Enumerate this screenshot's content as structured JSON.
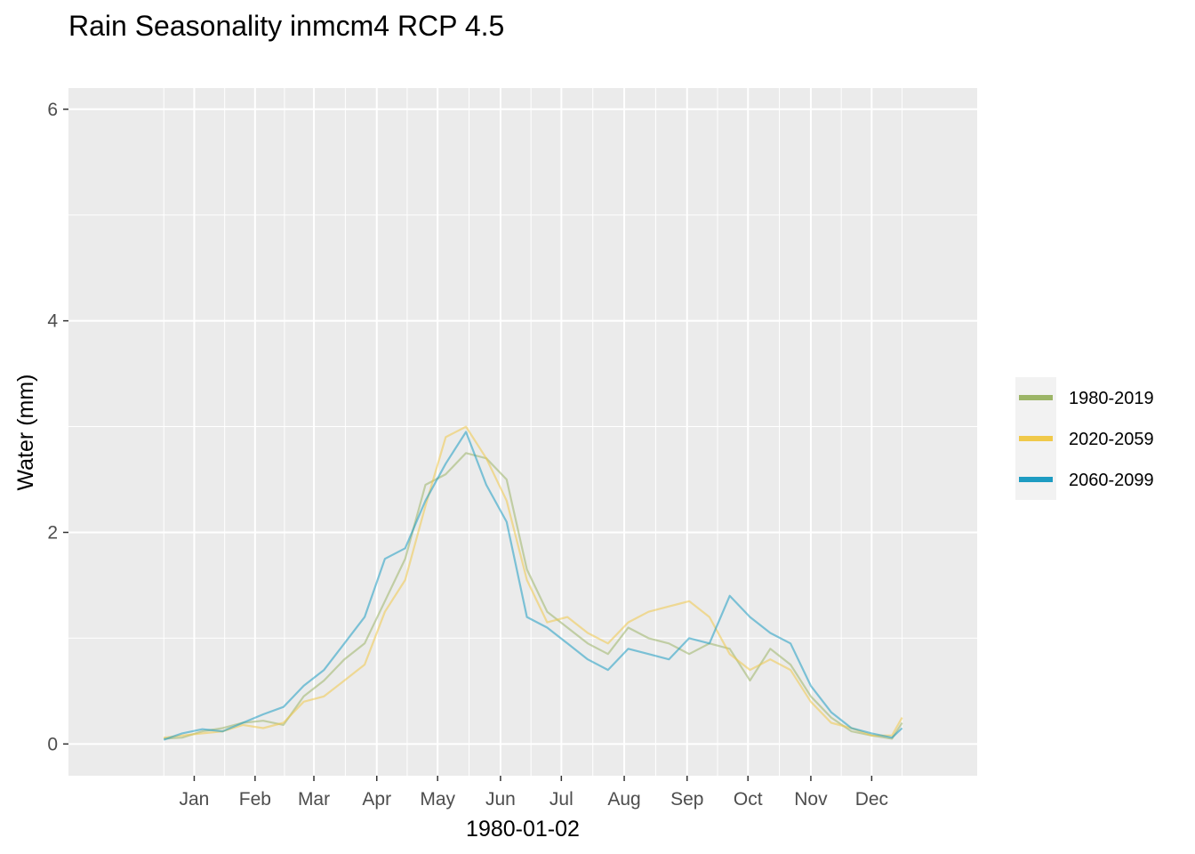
{
  "chart_data": {
    "type": "line",
    "title": "Rain Seasonality inmcm4 RCP 4.5",
    "xlabel": "1980-01-02",
    "ylabel": "Water (mm)",
    "ylim": [
      -0.3,
      6.2
    ],
    "yticks": [
      "0",
      "2",
      "4",
      "6"
    ],
    "x_unit": "day of year",
    "xlim": [
      -46,
      402
    ],
    "months": [
      "Jan",
      "Feb",
      "Mar",
      "Apr",
      "May",
      "Jun",
      "Jul",
      "Aug",
      "Sep",
      "Oct",
      "Nov",
      "Dec"
    ],
    "month_mid_days": [
      16,
      46,
      75,
      106,
      136,
      167,
      197,
      228,
      259,
      289,
      320,
      350
    ],
    "grid": true,
    "legend_position": "right",
    "x": [
      1,
      10,
      20,
      30,
      40,
      50,
      60,
      70,
      80,
      90,
      100,
      110,
      120,
      130,
      140,
      150,
      160,
      170,
      180,
      190,
      200,
      210,
      220,
      230,
      240,
      250,
      260,
      270,
      280,
      290,
      300,
      310,
      320,
      330,
      340,
      350,
      360,
      365
    ],
    "series": [
      {
        "name": "1980-2019",
        "color": "#9cb567",
        "values": [
          0.05,
          0.06,
          0.12,
          0.15,
          0.2,
          0.22,
          0.18,
          0.45,
          0.6,
          0.8,
          0.95,
          1.35,
          1.75,
          2.45,
          2.55,
          2.75,
          2.7,
          2.5,
          1.65,
          1.25,
          1.1,
          0.95,
          0.85,
          1.1,
          1.0,
          0.95,
          0.85,
          0.95,
          0.9,
          0.6,
          0.9,
          0.75,
          0.45,
          0.25,
          0.12,
          0.08,
          0.05,
          0.2
        ]
      },
      {
        "name": "2020-2059",
        "color": "#f0c94a",
        "values": [
          0.06,
          0.08,
          0.1,
          0.12,
          0.18,
          0.15,
          0.2,
          0.4,
          0.45,
          0.6,
          0.75,
          1.25,
          1.55,
          2.25,
          2.9,
          3.0,
          2.7,
          2.3,
          1.55,
          1.15,
          1.2,
          1.05,
          0.95,
          1.15,
          1.25,
          1.3,
          1.35,
          1.2,
          0.85,
          0.7,
          0.8,
          0.7,
          0.4,
          0.2,
          0.15,
          0.08,
          0.08,
          0.25
        ]
      },
      {
        "name": "2060-2099",
        "color": "#1e9cc2",
        "values": [
          0.04,
          0.1,
          0.14,
          0.12,
          0.2,
          0.28,
          0.35,
          0.55,
          0.7,
          0.95,
          1.2,
          1.75,
          1.85,
          2.3,
          2.65,
          2.95,
          2.45,
          2.1,
          1.2,
          1.1,
          0.95,
          0.8,
          0.7,
          0.9,
          0.85,
          0.8,
          1.0,
          0.95,
          1.4,
          1.2,
          1.05,
          0.95,
          0.55,
          0.3,
          0.15,
          0.1,
          0.06,
          0.15
        ]
      }
    ]
  }
}
